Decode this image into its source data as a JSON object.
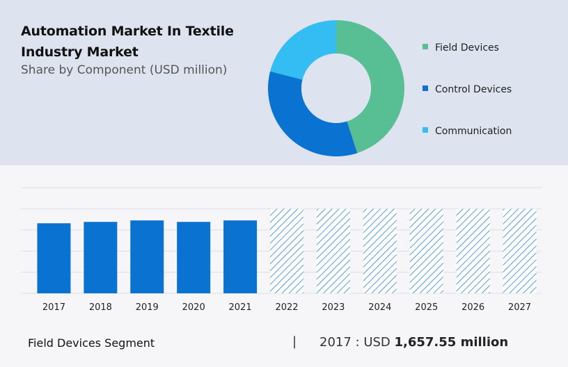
{
  "header": {
    "title": "Automation Market In Textile Industry Market",
    "subtitle": "Share by Component (USD million)"
  },
  "colors": {
    "field_devices": "#58bf94",
    "control_devices": "#0a72d1",
    "communication": "#33bdf2",
    "bar": "#0a72d1",
    "hatch": "#0a72d1"
  },
  "legend": [
    {
      "label": "Field Devices",
      "color": "#58bf94"
    },
    {
      "label": "Control Devices",
      "color": "#0a72d1"
    },
    {
      "label": "Communication",
      "color": "#33bdf2"
    }
  ],
  "footer": {
    "segment": "Field Devices Segment",
    "separator": "|",
    "year_prefix": "2017 : USD ",
    "value": "1,657.55 million"
  },
  "chart_data": [
    {
      "type": "pie",
      "title": "Share by Component (USD million)",
      "categories": [
        "Field Devices",
        "Control Devices",
        "Communication"
      ],
      "values": [
        45,
        34,
        21
      ]
    },
    {
      "type": "bar",
      "categories": [
        "2017",
        "2018",
        "2019",
        "2020",
        "2021",
        "2022",
        "2023",
        "2024",
        "2025",
        "2026",
        "2027"
      ],
      "values": [
        1657.55,
        1690,
        1725,
        1690,
        1725,
        2000,
        2000,
        2000,
        2000,
        2000,
        2000
      ],
      "forecast_from": "2022",
      "ylim": [
        0,
        2500
      ],
      "grid": true
    }
  ]
}
